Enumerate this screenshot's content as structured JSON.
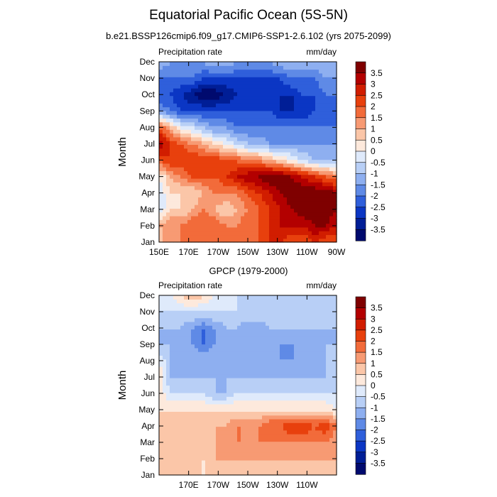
{
  "figure": {
    "title": "Equatorial Pacific Ocean (5S-5N)",
    "subtitle": "b.e21.BSSP126cmip6.f09_g17.CMIP6-SSP1-2.6.102 (yrs 2075-2099)"
  },
  "colorbar": {
    "levels": [
      "3.5",
      "3",
      "2.5",
      "2",
      "1.5",
      "1",
      "0.5",
      "0",
      "-0.5",
      "-1",
      "-1.5",
      "-2",
      "-2.5",
      "-3",
      "-3.5"
    ],
    "colors": [
      "#7f0000",
      "#b30000",
      "#d11d00",
      "#e8400d",
      "#f26b3a",
      "#f79a73",
      "#fbc6a8",
      "#fde9dc",
      "#dfeafb",
      "#b8cff6",
      "#8eaff0",
      "#5f8ae6",
      "#2f5fdb",
      "#0b36c4",
      "#001e96",
      "#000a6e"
    ]
  },
  "chart_data": [
    {
      "type": "heatmap",
      "title": "",
      "left_label": "Precipitation rate",
      "right_label": "mm/day",
      "xlabel": "",
      "ylabel": "Month",
      "x_ticks": [
        "150E",
        "170E",
        "170W",
        "150W",
        "130W",
        "110W",
        "90W"
      ],
      "x_tick_values": [
        150,
        170,
        190,
        210,
        230,
        250,
        270
      ],
      "xlim": [
        150,
        270
      ],
      "y_ticks": [
        "Jan",
        "Feb",
        "Mar",
        "Apr",
        "May",
        "Jun",
        "Jul",
        "Aug",
        "Sep",
        "Oct",
        "Nov",
        "Dec"
      ],
      "ylim": [
        1,
        12
      ],
      "x": [
        150,
        157.5,
        165,
        172.5,
        180,
        187.5,
        195,
        202.5,
        210,
        217.5,
        225,
        232.5,
        240,
        247.5,
        255,
        262.5,
        270
      ],
      "y": [
        1,
        2,
        3,
        4,
        5,
        6,
        7,
        8,
        9,
        10,
        11,
        12
      ],
      "values": [
        [
          0.5,
          1.5,
          1.5,
          2,
          2,
          2,
          2,
          2,
          2,
          2,
          2.5,
          2.5,
          2,
          2,
          2.5,
          2,
          2
        ],
        [
          1,
          1.5,
          1.5,
          2,
          2,
          2,
          1.5,
          1.5,
          2,
          2,
          2.5,
          3,
          3,
          3,
          3.5,
          3.5,
          3
        ],
        [
          -0.5,
          0.5,
          0.5,
          1,
          1.5,
          1,
          0.5,
          1,
          1.5,
          2,
          2.5,
          3,
          3.5,
          4,
          4,
          4,
          3.5
        ],
        [
          -0.5,
          0.5,
          0.5,
          0.5,
          1,
          1.5,
          1.5,
          1.5,
          2,
          2.5,
          3,
          3.5,
          4,
          4,
          4,
          4,
          3.5
        ],
        [
          0,
          1,
          1.5,
          2,
          2,
          2,
          2.5,
          3,
          3.5,
          3.5,
          4,
          4,
          3.5,
          3,
          2.5,
          2,
          1.5
        ],
        [
          2,
          2.5,
          2.5,
          2.5,
          2.5,
          2.5,
          2,
          2,
          1.5,
          1.5,
          1,
          0.5,
          0,
          -0.5,
          -1,
          -1,
          -1
        ],
        [
          3.5,
          2.5,
          2,
          1.5,
          1,
          0.5,
          0,
          -0.5,
          -1,
          -1,
          -1.5,
          -1.5,
          -1.5,
          -1.5,
          -1.5,
          -1.5,
          -1.5
        ],
        [
          2,
          1,
          0,
          -0.5,
          -1,
          -1.5,
          -1.5,
          -2,
          -2,
          -2,
          -2,
          -2,
          -2,
          -2,
          -2,
          -2,
          -2
        ],
        [
          -1.5,
          -2,
          -2.5,
          -2.5,
          -2.5,
          -2.5,
          -2.5,
          -2.5,
          -2.5,
          -2.5,
          -2.5,
          -3,
          -3,
          -3,
          -2.5,
          -2,
          -2
        ],
        [
          -2.5,
          -2.5,
          -3,
          -3.5,
          -4,
          -4,
          -3.5,
          -3,
          -3,
          -3,
          -3,
          -3,
          -3,
          -2.5,
          -2.5,
          -2,
          -2
        ],
        [
          -2,
          -2,
          -2,
          -2,
          -2.5,
          -2.5,
          -2.5,
          -2.5,
          -2.5,
          -2.5,
          -2.5,
          -2.5,
          -2,
          -2,
          -2,
          -1.5,
          -1.5
        ],
        [
          -1,
          -1.5,
          -1.5,
          -1.5,
          -1.5,
          -1,
          -1,
          -1.5,
          -1.5,
          -1.5,
          -1.5,
          -1,
          -1,
          -1,
          -1,
          -1,
          -1
        ]
      ]
    },
    {
      "type": "heatmap",
      "title": "GPCP (1979-2000)",
      "left_label": "Precipitation rate",
      "right_label": "mm/day",
      "xlabel": "",
      "ylabel": "Month",
      "x_ticks": [
        "170E",
        "170W",
        "150W",
        "130W",
        "110W"
      ],
      "x_tick_values": [
        170,
        190,
        210,
        230,
        250
      ],
      "xlim": [
        150,
        270
      ],
      "y_ticks": [
        "Jan",
        "Feb",
        "Mar",
        "Apr",
        "May",
        "Jun",
        "Jul",
        "Aug",
        "Sep",
        "Oct",
        "Nov",
        "Dec"
      ],
      "ylim": [
        1,
        12
      ],
      "x": [
        150,
        157.5,
        165,
        172.5,
        180,
        187.5,
        195,
        202.5,
        210,
        217.5,
        225,
        232.5,
        240,
        247.5,
        255,
        262.5,
        270
      ],
      "y": [
        1,
        2,
        3,
        4,
        5,
        6,
        7,
        8,
        9,
        10,
        11,
        12
      ],
      "values": [
        [
          0.5,
          0.5,
          0.5,
          0.5,
          0.5,
          0.5,
          0.5,
          0.5,
          0.5,
          0.5,
          0.5,
          0.5,
          0.5,
          0.5,
          0.5,
          0.5,
          0.5
        ],
        [
          0.5,
          1,
          0.5,
          1,
          0.5,
          1,
          1,
          1,
          1,
          1,
          1,
          1,
          1,
          1,
          1,
          1,
          1
        ],
        [
          0.5,
          1,
          1,
          1,
          1,
          1,
          1.5,
          1.5,
          1.5,
          1.5,
          1.5,
          1.5,
          1.5,
          1.5,
          1.5,
          1.5,
          1
        ],
        [
          0.5,
          1,
          1,
          1,
          1,
          1,
          1,
          1.5,
          1.5,
          1.5,
          2,
          2,
          2.5,
          2.5,
          2,
          2.5,
          1.5
        ],
        [
          0.5,
          0.5,
          0.5,
          0.5,
          0.5,
          0.5,
          0.5,
          0.5,
          0.5,
          0.5,
          0.5,
          0.5,
          0.5,
          0.5,
          0.5,
          0.5,
          0
        ],
        [
          0.5,
          -0.5,
          -0.5,
          -0.5,
          -0.5,
          -1,
          -1,
          -0.5,
          -0.5,
          -0.5,
          -0.5,
          -0.5,
          -0.5,
          -0.5,
          -0.5,
          -0.5,
          -0.5
        ],
        [
          0.5,
          -1,
          -1,
          -1,
          -1,
          -1,
          -1,
          -1,
          -1,
          -1,
          -1,
          -1,
          -1,
          -1,
          -1,
          -1,
          -0.5
        ],
        [
          0,
          -1,
          -1,
          -1,
          -1,
          -1,
          -1,
          -1,
          -1,
          -1,
          -1,
          -1.5,
          -1.5,
          -1,
          -1,
          -1,
          -0.5
        ],
        [
          -1,
          -1,
          -1,
          -1.5,
          -2,
          -1.5,
          -1,
          -1,
          -1,
          -1,
          -1.5,
          -1.5,
          -1.5,
          -1.5,
          -1,
          -1,
          -1
        ],
        [
          -1,
          -1,
          -1,
          -1.5,
          -2,
          -1.5,
          -1,
          -1,
          -1.5,
          -1.5,
          -1,
          -1,
          -1,
          -1,
          -1,
          -1,
          -1
        ],
        [
          -0.5,
          -0.5,
          -0.5,
          -0.5,
          -0.5,
          -0.5,
          -0.5,
          -0.5,
          -0.5,
          -0.5,
          -0.5,
          -0.5,
          -0.5,
          -0.5,
          -0.5,
          -0.5,
          -0.5
        ],
        [
          0,
          0,
          0.5,
          1,
          0.5,
          0,
          0,
          -0.5,
          -0.5,
          -0.5,
          -0.5,
          -0.5,
          -0.5,
          -0.5,
          -0.5,
          -0.5,
          -0.5
        ]
      ]
    }
  ]
}
